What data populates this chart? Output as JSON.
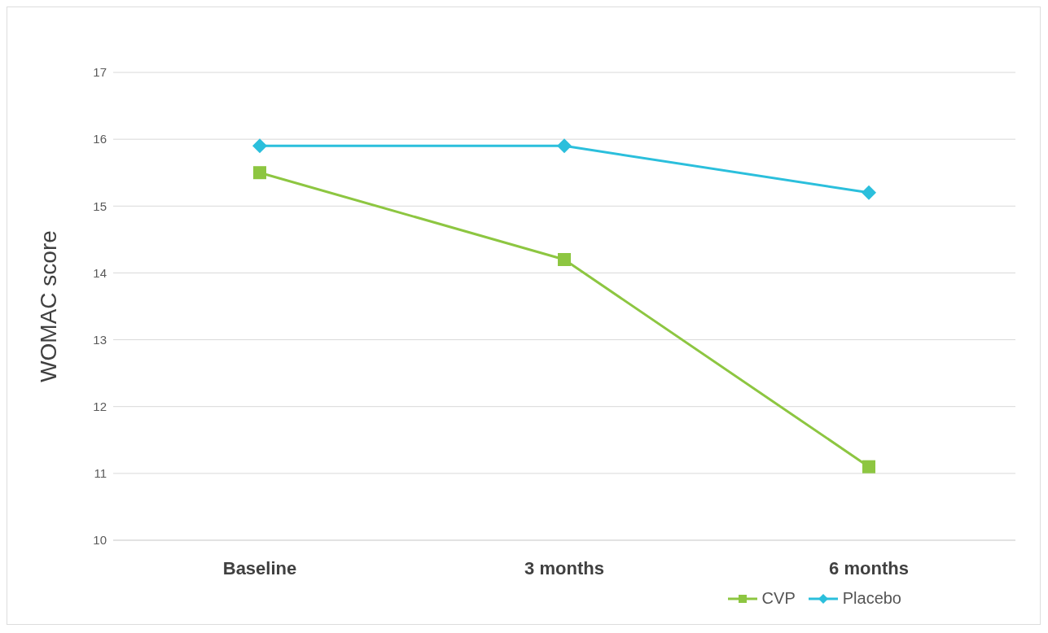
{
  "chart_data": {
    "type": "line",
    "ylabel": "WOMAC score",
    "categories": [
      "Baseline",
      "3 months",
      "6 months"
    ],
    "series": [
      {
        "name": "CVP",
        "color": "#8dc641",
        "values": [
          15.5,
          14.2,
          11.1
        ],
        "marker": "square"
      },
      {
        "name": "Placebo",
        "color": "#2bbfdc",
        "values": [
          15.9,
          15.9,
          15.2
        ],
        "marker": "diamond"
      }
    ],
    "ylim": [
      10,
      17
    ],
    "yticks": [
      10,
      11,
      12,
      13,
      14,
      15,
      16,
      17
    ],
    "grid": "y",
    "legend": "bottom right",
    "line_style": "solid"
  }
}
